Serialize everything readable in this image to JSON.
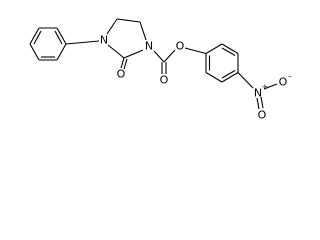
{
  "nodes": [
    {
      "label": "N"
    },
    {
      "label": "N"
    },
    {
      "label": "O"
    },
    {
      "label": "O"
    },
    {
      "label": "O"
    },
    {
      "label": "N",
      "charge": "+"
    },
    {
      "label": "O",
      "charge": "-"
    },
    {
      "label": "O"
    }
  ]
}
